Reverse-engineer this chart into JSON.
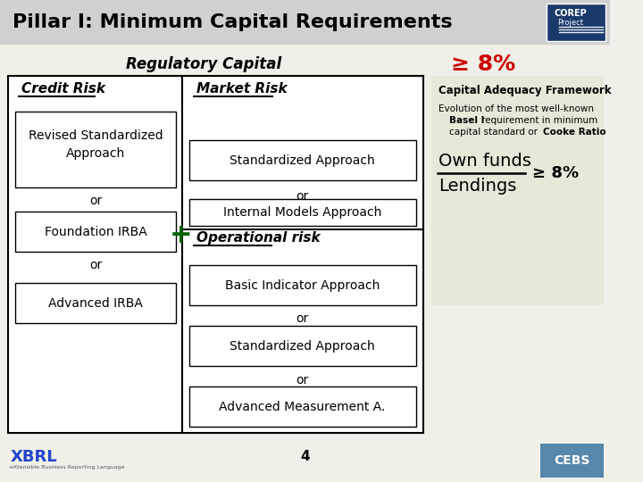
{
  "title": "Pillar I: Minimum Capital Requirements",
  "title_bg": "#d0d0d0",
  "slide_bg": "#f0f0e8",
  "reg_capital_label": "Regulatory Capital",
  "ge8_label": "≥ 8%",
  "credit_risk_label": "Credit Risk",
  "market_risk_label": "Market Risk",
  "op_risk_label": "Operational risk",
  "sidebar_title": "Capital Adequacy Framework",
  "sidebar_text1": "Evolution of the most well-known",
  "sidebar_text2": "Basel I requirement in minimum",
  "sidebar_text3": "capital standard or Cooke Ratio",
  "sidebar_formula_top": "Own funds",
  "sidebar_formula_bot": "Lendings",
  "sidebar_formula_ge": "≥ 8%",
  "sidebar_bg": "#e8e8d8",
  "page_num": "4",
  "box_outline": "#000000",
  "box_fill": "#ffffff"
}
